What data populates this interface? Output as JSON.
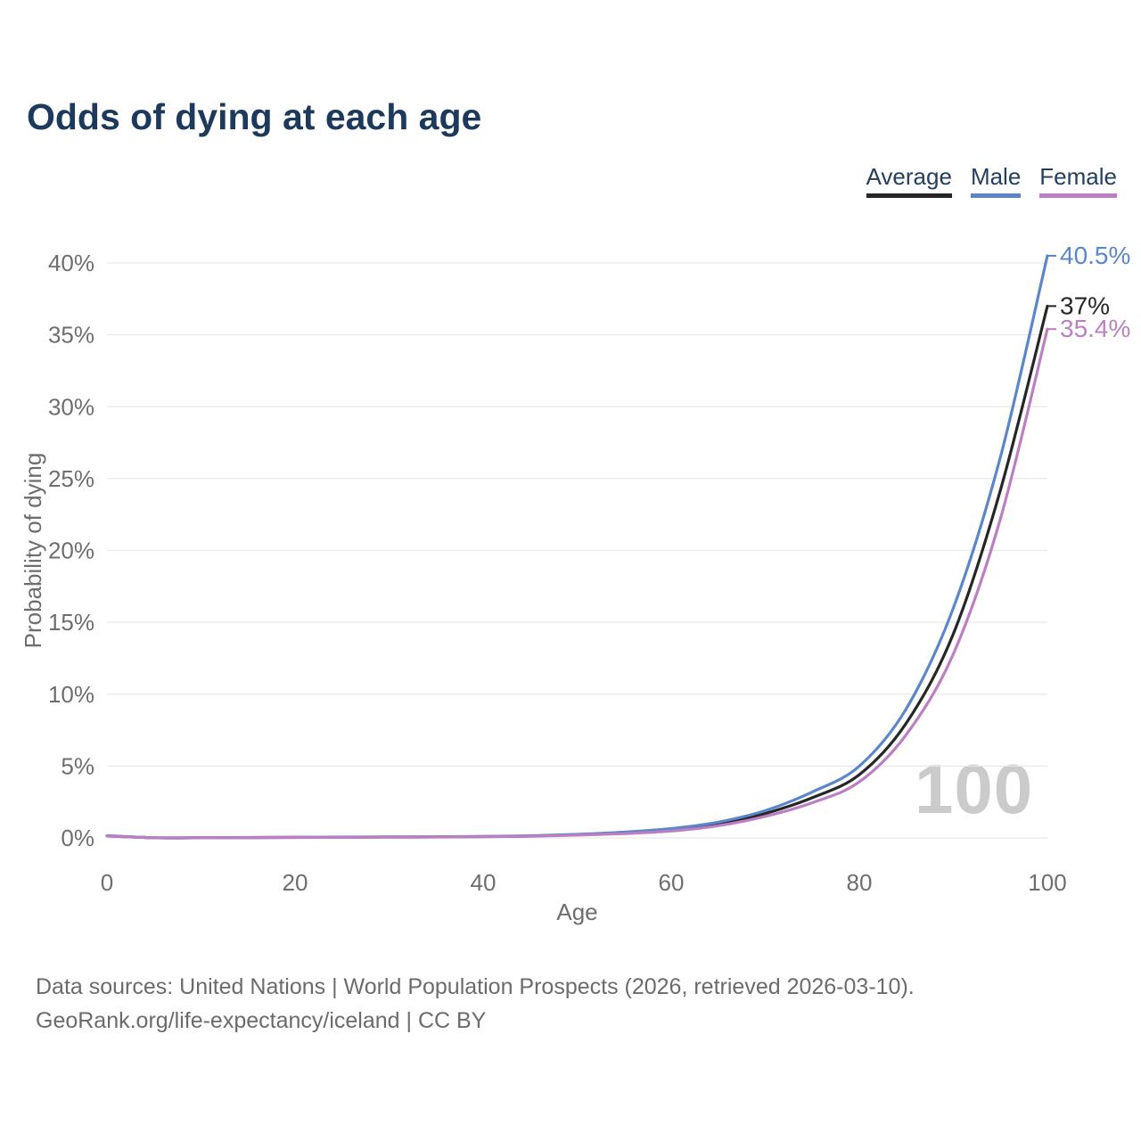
{
  "page": {
    "title": "Odds of dying at each age"
  },
  "legend": {
    "items": [
      {
        "label": "Average"
      },
      {
        "label": "Male"
      },
      {
        "label": "Female"
      }
    ]
  },
  "footer": {
    "line1": "Data sources: United Nations | World Population Prospects (2026, retrieved 2026-03-10).",
    "line2": "GeoRank.org/life-expectancy/iceland | CC BY"
  },
  "chart_data": {
    "type": "line",
    "title": "Odds of dying at each age",
    "xlabel": "Age",
    "ylabel": "Probability of dying",
    "watermark": "100",
    "legend_position": "top-right",
    "grid": "horizontal-only",
    "xlim": [
      0,
      100
    ],
    "ylim": [
      0,
      40
    ],
    "x_ticks": [
      0,
      20,
      40,
      60,
      80,
      100
    ],
    "y_ticks": [
      {
        "v": 0,
        "label": "0%"
      },
      {
        "v": 5,
        "label": "5%"
      },
      {
        "v": 10,
        "label": "10%"
      },
      {
        "v": 15,
        "label": "15%"
      },
      {
        "v": 20,
        "label": "20%"
      },
      {
        "v": 25,
        "label": "25%"
      },
      {
        "v": 30,
        "label": "30%"
      },
      {
        "v": 35,
        "label": "35%"
      },
      {
        "v": 40,
        "label": "40%"
      }
    ],
    "x": [
      0,
      5,
      10,
      15,
      20,
      25,
      30,
      35,
      40,
      45,
      50,
      55,
      60,
      65,
      70,
      75,
      80,
      85,
      90,
      95,
      100
    ],
    "series": [
      {
        "name": "Average",
        "color": "#262626",
        "end_label": "37%",
        "values": [
          0.14,
          0.01,
          0.01,
          0.025,
          0.04,
          0.05,
          0.06,
          0.07,
          0.09,
          0.13,
          0.22,
          0.35,
          0.55,
          0.95,
          1.7,
          2.8,
          4.4,
          8.0,
          14.2,
          24.2,
          37.0
        ]
      },
      {
        "name": "Male",
        "color": "#5b87ca",
        "end_label": "40.5%",
        "values": [
          0.16,
          0.01,
          0.01,
          0.03,
          0.05,
          0.06,
          0.07,
          0.08,
          0.1,
          0.15,
          0.25,
          0.4,
          0.65,
          1.1,
          1.9,
          3.2,
          5.0,
          9.0,
          16.0,
          26.5,
          40.5
        ]
      },
      {
        "name": "Female",
        "color": "#bd7fc3",
        "end_label": "35.4%",
        "values": [
          0.13,
          0.008,
          0.008,
          0.02,
          0.03,
          0.04,
          0.05,
          0.06,
          0.08,
          0.11,
          0.19,
          0.3,
          0.48,
          0.85,
          1.5,
          2.45,
          3.9,
          7.2,
          12.8,
          22.2,
          35.4
        ]
      }
    ],
    "colors": {
      "title": "#1d3a5c",
      "axis_text": "#6e6e6e",
      "grid": "#e9e9e9",
      "watermark": "#cbcbcb",
      "source_text": "#6b6b6b"
    }
  }
}
